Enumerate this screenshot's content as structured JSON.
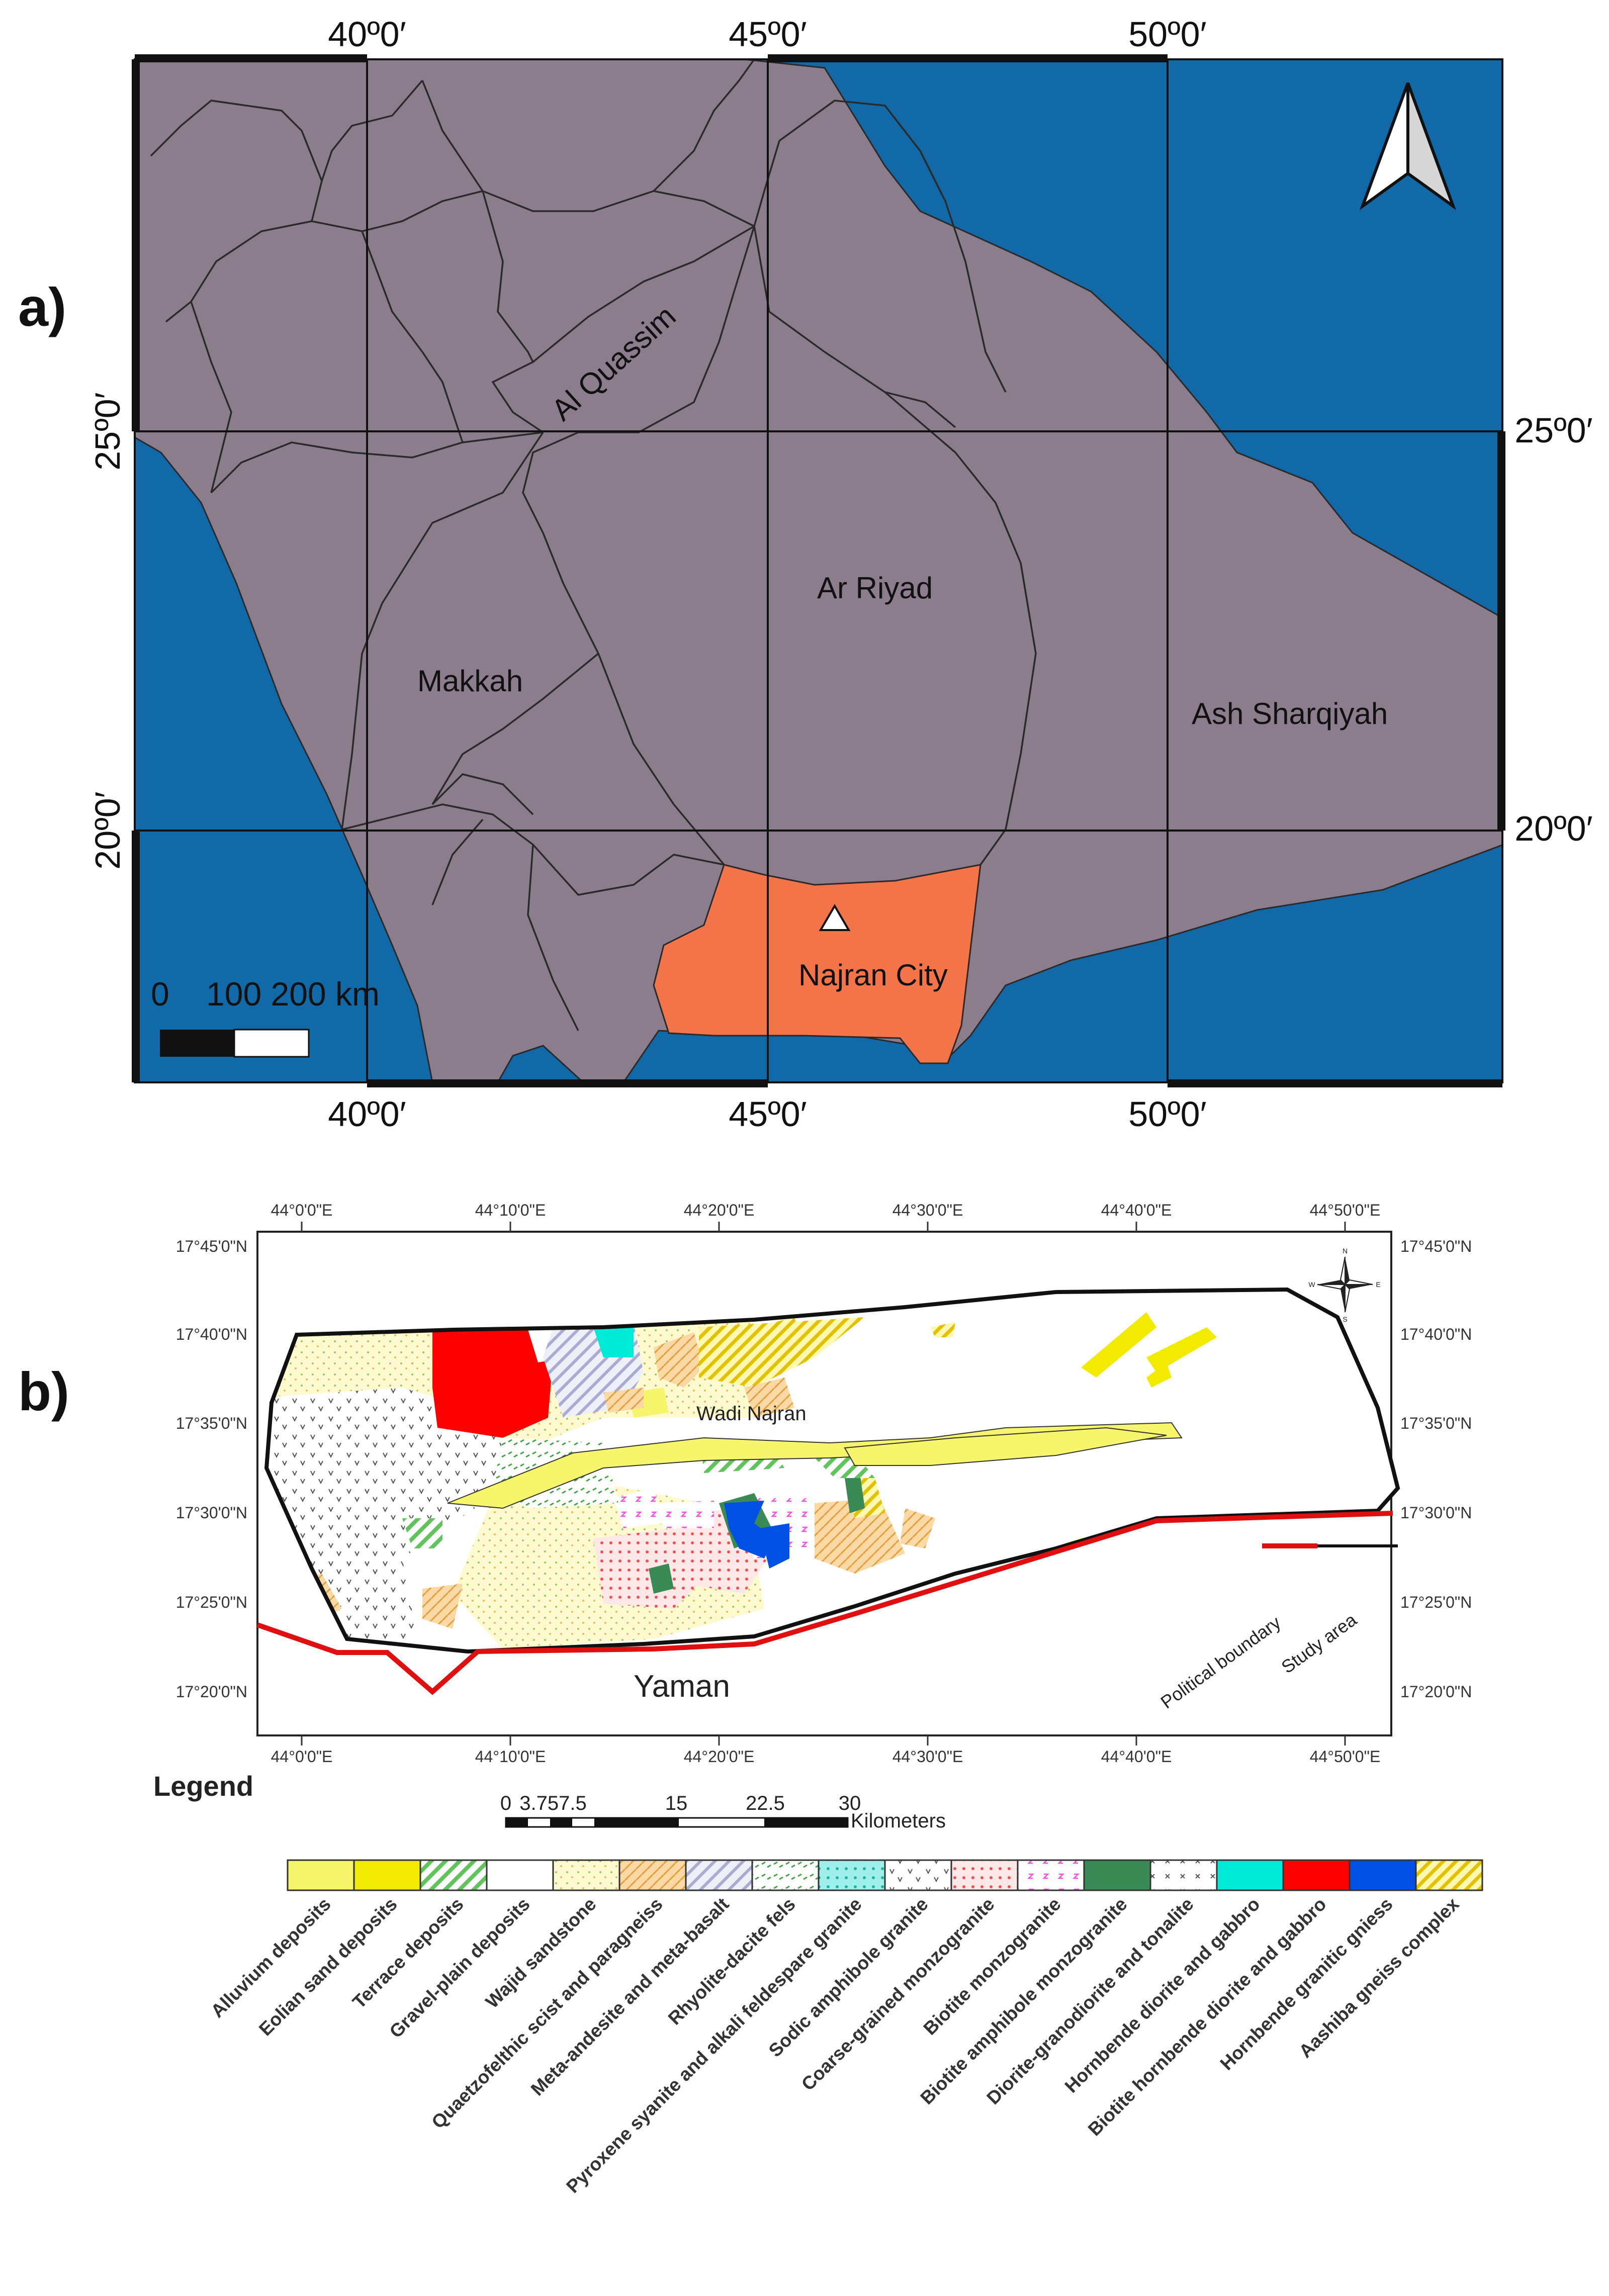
{
  "panels": {
    "a": "a)",
    "b": "b)"
  },
  "map_a": {
    "top_lon_labels": [
      "40º0′",
      "45º0′",
      "50º0′"
    ],
    "bottom_lon_labels": [
      "40º0′",
      "45º0′",
      "50º0′"
    ],
    "left_lat_labels": [
      "25º0′",
      "20º0′"
    ],
    "right_lat_labels": [
      "25º0′",
      "20º0′"
    ],
    "regions": [
      "Al Quassim",
      "Ar Riyad",
      "Makkah",
      "Ash Sharqiyah",
      "Najran City"
    ],
    "scale_text": "0    100 200 km",
    "colors": {
      "sea": "#1169a8",
      "land": "#8b7d8c",
      "highlight": "#f4744a"
    }
  },
  "map_b": {
    "top_lon_labels": [
      "44°0'0\"E",
      "44°10'0\"E",
      "44°20'0\"E",
      "44°30'0\"E",
      "44°40'0\"E",
      "44°50'0\"E"
    ],
    "bottom_lon_labels": [
      "44°0'0\"E",
      "44°10'0\"E",
      "44°20'0\"E",
      "44°30'0\"E",
      "44°40'0\"E",
      "44°50'0\"E"
    ],
    "lat_labels": [
      "17°45'0\"N",
      "17°40'0\"N",
      "17°35'0\"N",
      "17°30'0\"N",
      "17°25'0\"N",
      "17°20'0\"N"
    ],
    "place_labels": {
      "wadi": "Wadi Najran",
      "country": "Yaman"
    },
    "boundary_legend": {
      "political": "Political boundary",
      "study": "Study area"
    },
    "compass_letters": [
      "N",
      "S",
      "E",
      "W"
    ]
  },
  "scale_bar_b": {
    "ticks": [
      "0",
      "3.757.5",
      "15",
      "22.5",
      "30"
    ],
    "unit": "Kilometers"
  },
  "legend": {
    "title": "Legend",
    "items": [
      {
        "label": "Alluvium deposits",
        "color": "#f7f56b"
      },
      {
        "label": "Eolian sand deposits",
        "color": "#f2ea00"
      },
      {
        "label": "Terrace deposits",
        "color": "#5fc45a"
      },
      {
        "label": "Gravel-plain deposits",
        "color": "#ffffff"
      },
      {
        "label": "Wajid sandstone",
        "color": "#fff9d0"
      },
      {
        "label": "Quaetzofelthic scist and paragneiss",
        "color": "#f6c27a"
      },
      {
        "label": "Meta-andesite and meta-basalt",
        "color": "#c9cbe4"
      },
      {
        "label": "Rhyolite-dacite fels",
        "color": "#7fcf7a"
      },
      {
        "label": "Pyroxene syanite and alkali feldespare granite",
        "color": "#47d9d0"
      },
      {
        "label": "Sodic amphibole granite",
        "color": "#ffffff"
      },
      {
        "label": "Coarse-grained monzogranite",
        "color": "#f06060"
      },
      {
        "label": "Biotite monzogranite",
        "color": "#ff4fd8"
      },
      {
        "label": "Biotite amphibole monzogranite",
        "color": "#3a8a55"
      },
      {
        "label": "Diorite-granodiorite and tonalite",
        "color": "#ffffff"
      },
      {
        "label": "Hornbende diorite and gabbro",
        "color": "#00ead8"
      },
      {
        "label": "Biotite hornbende diorite and gabbro",
        "color": "#ff0000"
      },
      {
        "label": "Hornbende granitic gniess",
        "color": "#0050e6"
      },
      {
        "label": "Aashiba gneiss complex",
        "color": "#f5d000"
      }
    ]
  }
}
